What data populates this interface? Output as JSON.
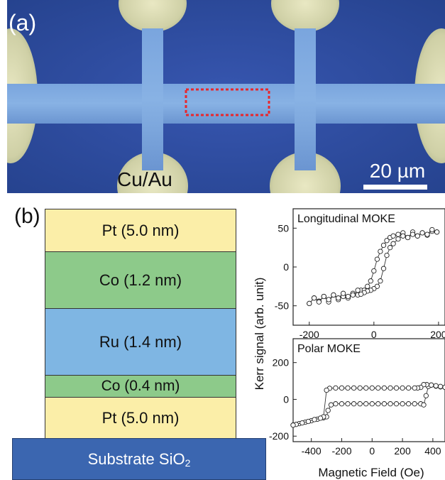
{
  "figure": {
    "panel_a": {
      "label": "(a)",
      "material_label": "Cu/Au",
      "scale_bar_label": "20 µm",
      "colors": {
        "background": "#2f4fa8",
        "track": "#6d9ad7",
        "pad": "#d8d9b0",
        "selection": "#e8262c"
      }
    },
    "panel_b": {
      "label": "(b)",
      "stack": [
        {
          "name": "Pt (5.0 nm)",
          "color": "#fbeea8"
        },
        {
          "name": "Co (1.2 nm)",
          "color": "#8dca8a"
        },
        {
          "name": "Ru (1.4 nm)",
          "color": "#7fb6e3"
        },
        {
          "name": "Co (0.4 nm)",
          "color": "#8dca8a"
        },
        {
          "name": "Pt (5.0 nm)",
          "color": "#fbeea8"
        }
      ],
      "substrate": {
        "text": "Substrate SiO",
        "sub": "2",
        "color": "#3b66b0"
      }
    }
  },
  "chart_data": [
    {
      "type": "scatter",
      "title": "Longitudinal MOKE",
      "xlim": [
        -250,
        220
      ],
      "ylim": [
        -75,
        75
      ],
      "xticks": [
        -200,
        0,
        200
      ],
      "yticks": [
        -50,
        0,
        50
      ],
      "series": [
        {
          "x": [
            -200,
            -185,
            -170,
            -155,
            -140,
            -125,
            -110,
            -95,
            -80,
            -65,
            -50,
            -40,
            -30,
            -20,
            -10,
            0,
            10,
            20,
            30,
            40,
            50,
            60,
            75,
            90,
            105,
            120,
            135,
            150,
            165,
            180,
            195
          ],
          "y": [
            -47,
            -40,
            -44,
            -38,
            -45,
            -36,
            -42,
            -38,
            -40,
            -34,
            -36,
            -30,
            -30,
            -25,
            -18,
            -5,
            10,
            20,
            28,
            34,
            38,
            40,
            42,
            44,
            38,
            45,
            40,
            44,
            41,
            46,
            45
          ]
        },
        {
          "x": [
            195,
            180,
            165,
            150,
            135,
            120,
            105,
            90,
            75,
            60,
            50,
            40,
            30,
            20,
            10,
            0,
            -10,
            -20,
            -30,
            -40,
            -50,
            -65,
            -80,
            -95,
            -110,
            -125,
            -140,
            -155,
            -170,
            -185,
            -200
          ],
          "y": [
            45,
            48,
            42,
            44,
            40,
            42,
            38,
            40,
            36,
            30,
            25,
            15,
            -2,
            -18,
            -25,
            -28,
            -30,
            -31,
            -33,
            -35,
            -30,
            -36,
            -38,
            -34,
            -40,
            -36,
            -42,
            -38,
            -45,
            -40,
            -47
          ]
        }
      ]
    },
    {
      "type": "scatter",
      "title": "Polar MOKE",
      "xlim": [
        -520,
        480
      ],
      "ylim": [
        -230,
        330
      ],
      "xticks": [
        -400,
        -200,
        0,
        200,
        400
      ],
      "yticks": [
        -200,
        0,
        200
      ],
      "xlabel": "Magnetic Field (Oe)",
      "ylabel": "Kerr signal (arb. unit)",
      "series": [
        {
          "x": [
            -520,
            -480,
            -440,
            -400,
            -360,
            -320,
            -300,
            -290,
            -270,
            -240,
            -200,
            -160,
            -120,
            -80,
            -40,
            0,
            40,
            80,
            120,
            160,
            200,
            240,
            280,
            320,
            340,
            355,
            370,
            390,
            420,
            450,
            480
          ],
          "y": [
            -140,
            -132,
            -124,
            -116,
            -108,
            -100,
            -95,
            -60,
            -30,
            -24,
            -24,
            -24,
            -24,
            -24,
            -24,
            -24,
            -24,
            -24,
            -24,
            -24,
            -24,
            -24,
            -24,
            -24,
            -30,
            20,
            70,
            78,
            72,
            68,
            66
          ]
        },
        {
          "x": [
            480,
            450,
            420,
            390,
            360,
            340,
            320,
            300,
            280,
            240,
            200,
            160,
            120,
            80,
            40,
            0,
            -40,
            -80,
            -120,
            -160,
            -200,
            -240,
            -280,
            -300,
            -320,
            -340,
            -380,
            -420,
            -460,
            -500,
            -520
          ],
          "y": [
            66,
            70,
            74,
            78,
            80,
            80,
            65,
            62,
            62,
            62,
            62,
            62,
            62,
            62,
            62,
            62,
            62,
            62,
            62,
            62,
            62,
            62,
            60,
            50,
            -95,
            -102,
            -110,
            -120,
            -128,
            -136,
            -140
          ]
        }
      ]
    }
  ]
}
